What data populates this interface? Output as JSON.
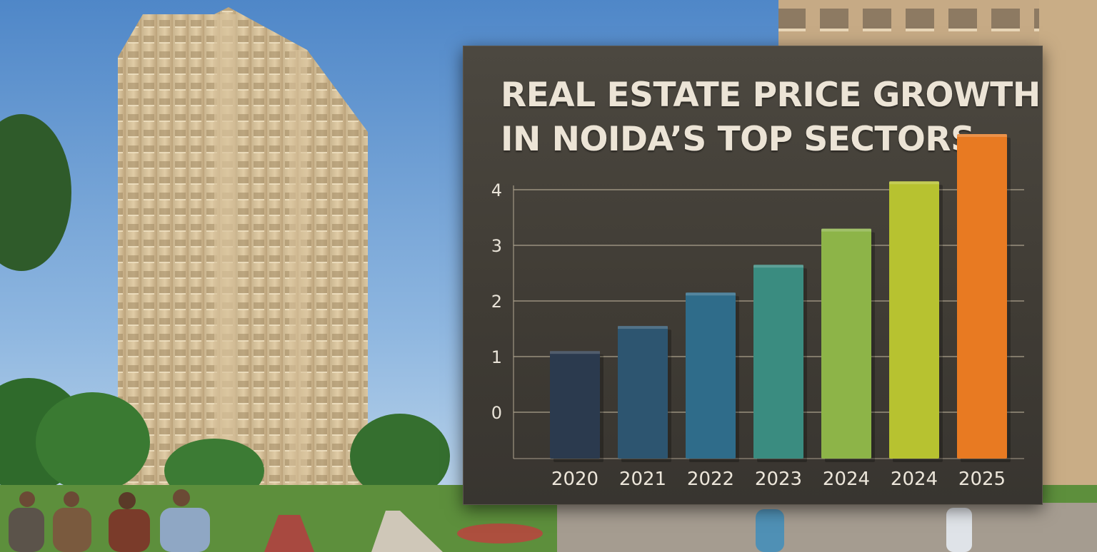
{
  "chart_data": {
    "type": "bar",
    "title_lines": [
      "REAL ESTATE PRICE GROWTH",
      "IN NOIDA’S TOP SECTORS"
    ],
    "xlabel": "",
    "ylabel": "",
    "categories": [
      "2020",
      "2021",
      "2022",
      "2023",
      "2024",
      "2024",
      "2025"
    ],
    "values": [
      1.1,
      1.55,
      2.15,
      2.65,
      3.3,
      4.15,
      5.0
    ],
    "y_ticks": [
      0,
      1,
      2,
      3,
      4
    ],
    "ylim": [
      -0.8,
      5.0
    ],
    "grid": true,
    "legend": "none",
    "bar_colors": [
      "#2b3a4e",
      "#2d5570",
      "#2f6c8a",
      "#3a8c80",
      "#8db448",
      "#b7c230",
      "#e87a22"
    ]
  },
  "colors": {
    "panel_bg": "#444038",
    "grid_line": "#b8ad97",
    "text": "#ece4d6"
  }
}
